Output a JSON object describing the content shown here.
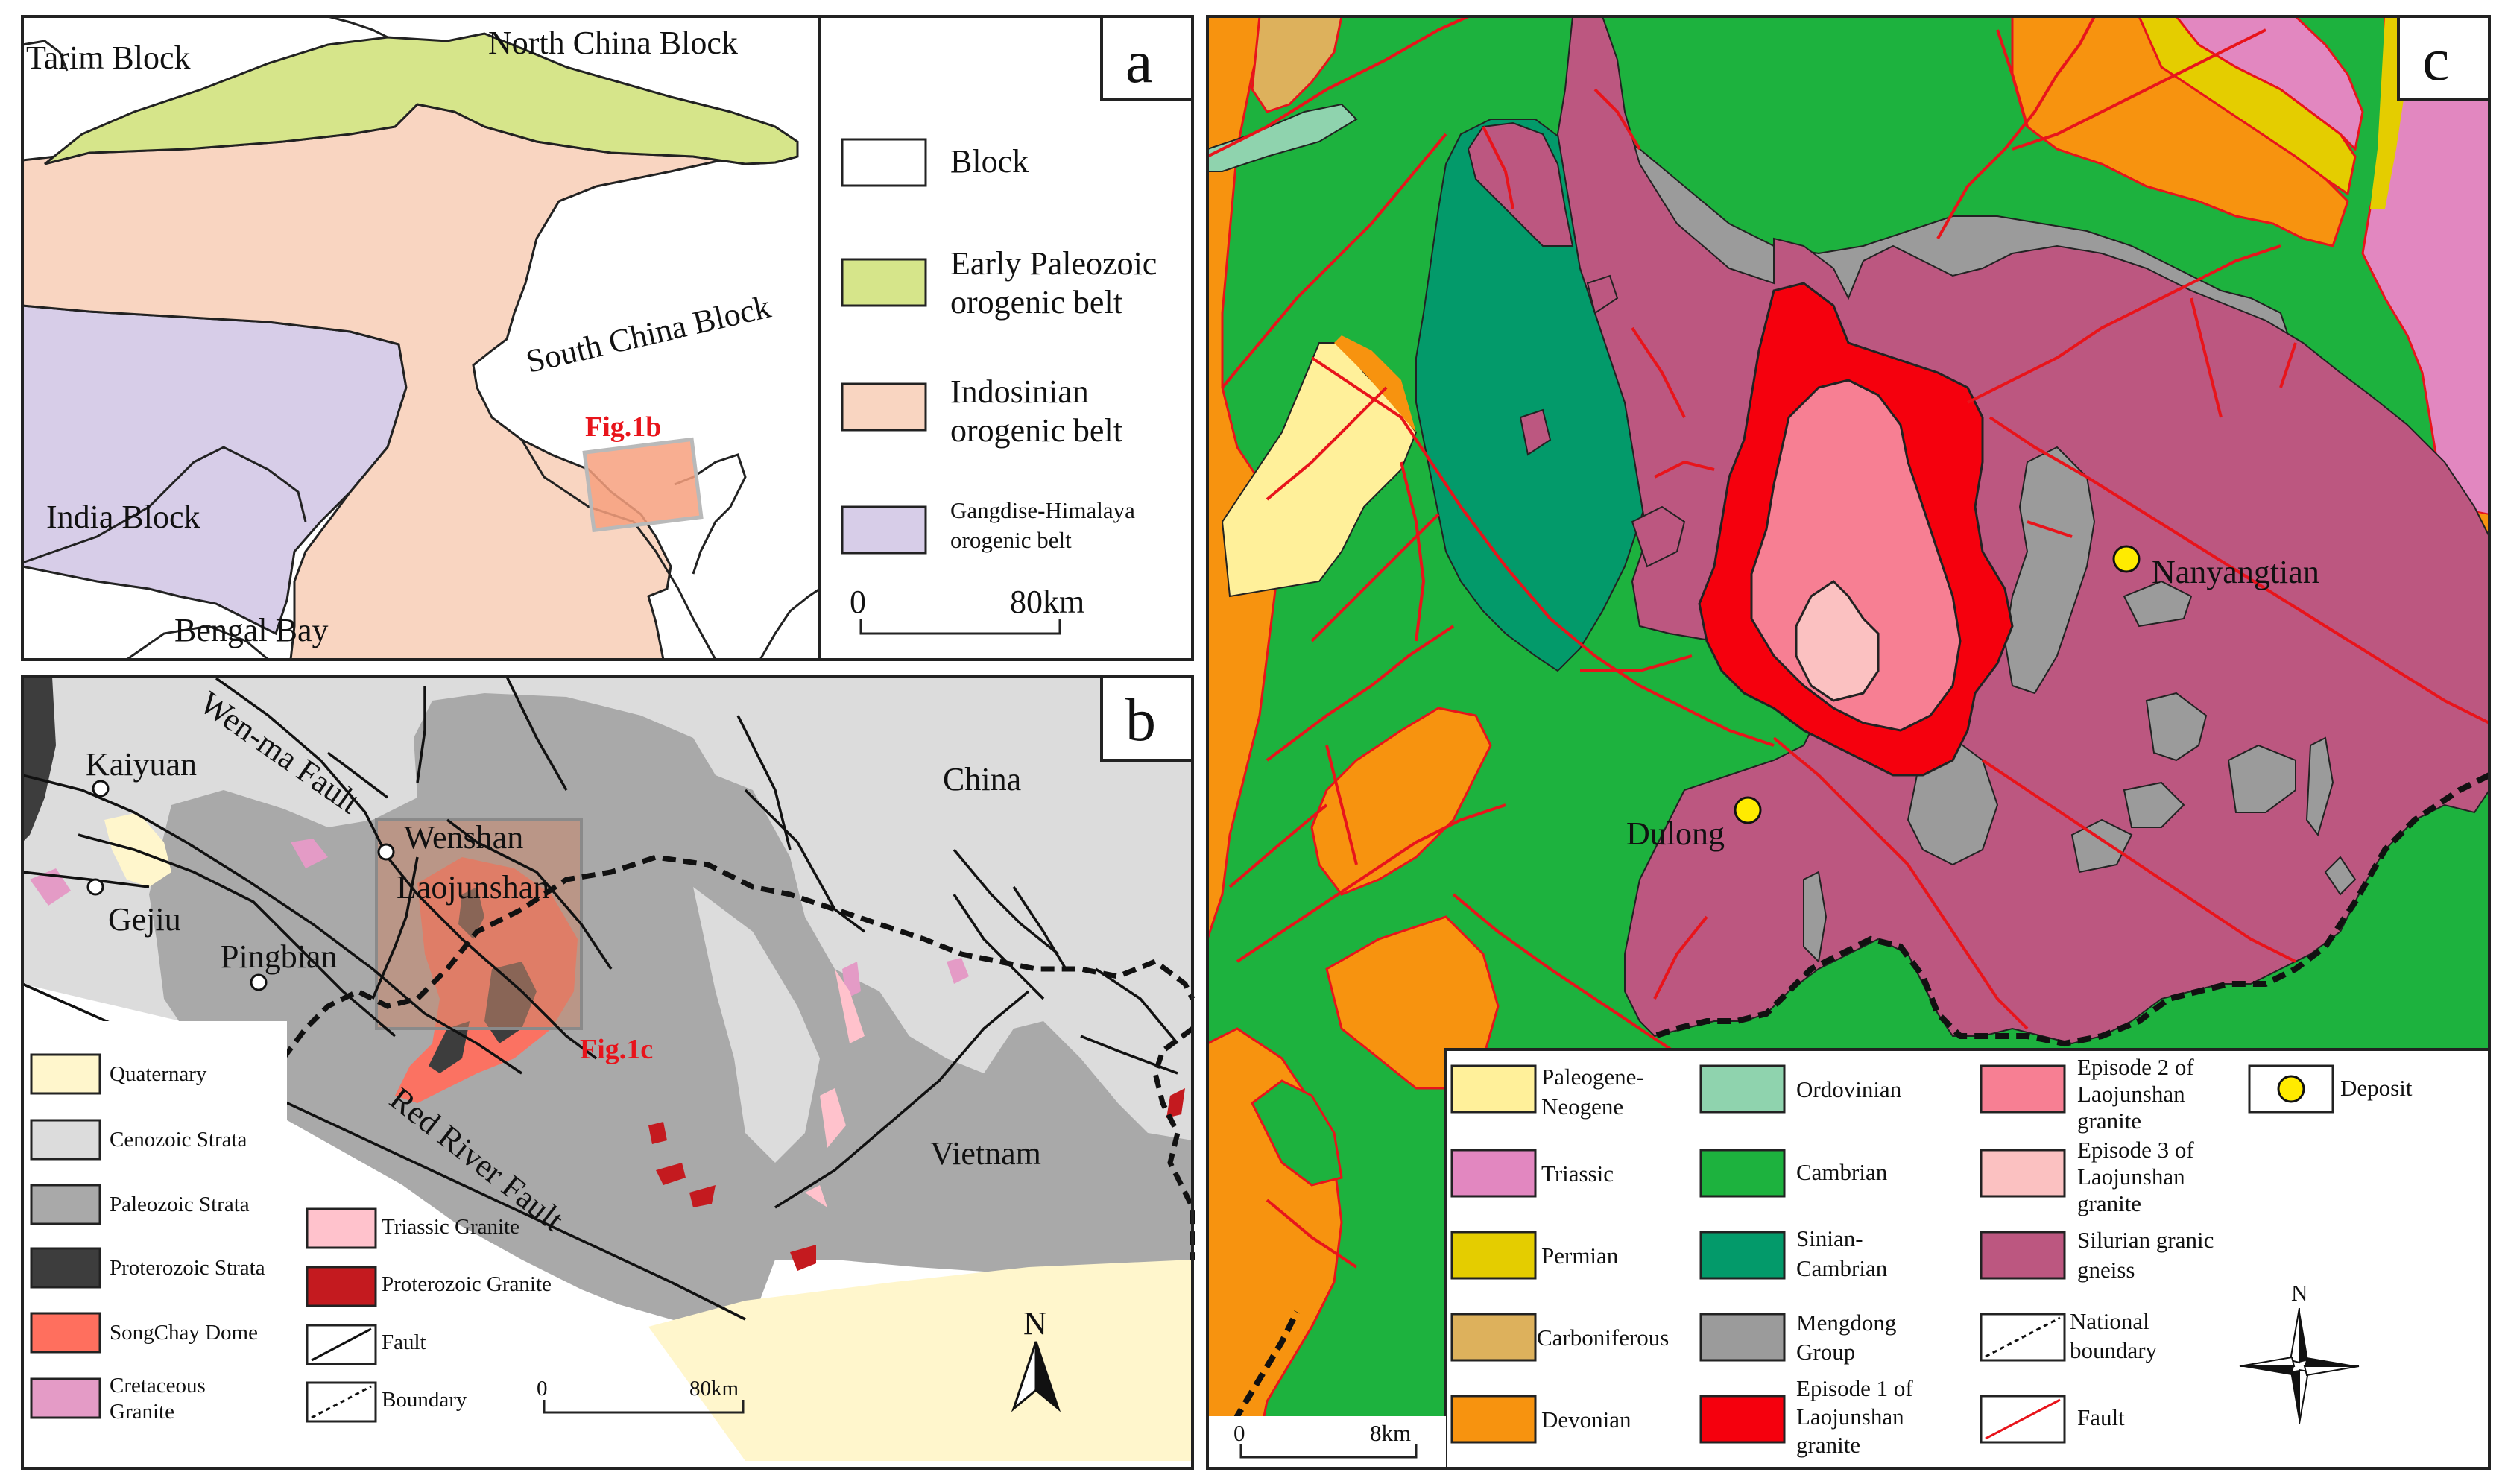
{
  "panel_a": {
    "letter": "a",
    "places": {
      "tarim": "Tarim Block",
      "north_china": "North China Block",
      "south_china": "South China Block",
      "india": "India Block",
      "bengal": "Bengal Bay",
      "fig1b": "Fig.1b"
    },
    "legend": [
      {
        "label": "Block",
        "color": "#ffffff"
      },
      {
        "label": "Early Paleozoic orogenic belt",
        "lines": [
          "Early Paleozoic",
          "orogenic belt"
        ],
        "color": "#d6e58a"
      },
      {
        "label": "Indosinian orogenic belt",
        "lines": [
          "Indosinian",
          "orogenic belt"
        ],
        "color": "#f9d5c1"
      },
      {
        "label": "Gangdise-Himalaya orogenic belt",
        "lines": [
          "Gangdise-Himalaya",
          "orogenic belt"
        ],
        "color": "#d7cde8"
      }
    ],
    "scale": {
      "start": "0",
      "end": "80km"
    }
  },
  "panel_b": {
    "letter": "b",
    "places": {
      "kaiyuan": "Kaiyuan",
      "gejiu": "Gejiu",
      "pingbian": "Pingbian",
      "wenshan": "Wenshan",
      "laojunshan": "Laojunshan",
      "china": "China",
      "vietnam": "Vietnam",
      "wenma_fault": "Wen-ma Fault",
      "red_river_fault": "Red River Fault",
      "fig1c": "Fig.1c"
    },
    "legend": [
      {
        "label": "Quaternary",
        "color": "#fff6cc"
      },
      {
        "label": "Cenozoic Strata",
        "color": "#dcdcdc"
      },
      {
        "label": "Paleozoic Strata",
        "color": "#a9a9a9"
      },
      {
        "label": "Proterozoic Strata",
        "color": "#3d3d3d"
      },
      {
        "label": "SongChay Dome",
        "color": "#ff6f5e"
      },
      {
        "label": "Cretaceous Granite",
        "lines": [
          "Cretaceous",
          "Granite"
        ],
        "color": "#e49bc6"
      },
      {
        "label": "Triassic Granite",
        "color": "#ffc2cc"
      },
      {
        "label": "Proterozoic Granite",
        "color": "#c41a1f"
      },
      {
        "label": "Fault",
        "symbol": "fault"
      },
      {
        "label": "Boundary",
        "symbol": "boundary"
      }
    ],
    "scale": {
      "start": "0",
      "end": "80km"
    },
    "north": "N"
  },
  "panel_c": {
    "letter": "c",
    "places": {
      "nanyangtian": "Nanyangtian",
      "dulong": "Dulong"
    },
    "legend": [
      {
        "label": "Paleogene-Neogene",
        "lines": [
          "Paleogene-",
          "Neogene"
        ],
        "color": "#fff09a"
      },
      {
        "label": "Triassic",
        "color": "#e287c0"
      },
      {
        "label": "Permian",
        "color": "#e4cd00"
      },
      {
        "label": "Carboniferous",
        "color": "#ddb15c"
      },
      {
        "label": "Devonian",
        "color": "#f7930f"
      },
      {
        "label": "Ordovinian",
        "color": "#8fd3ae"
      },
      {
        "label": "Cambrian",
        "color": "#1db23e"
      },
      {
        "label": "Sinian-Cambrian",
        "lines": [
          "Sinian-",
          "Cambrian"
        ],
        "color": "#039a6a"
      },
      {
        "label": "Mengdong Group",
        "lines": [
          "Mengdong",
          "Group"
        ],
        "color": "#9b9b9b"
      },
      {
        "label": "Episode 1 of Laojunshan granite",
        "lines": [
          "Episode 1 of",
          "Laojunshan",
          "granite"
        ],
        "color": "#f5000d"
      },
      {
        "label": "Episode 2 of Laojunshan granite",
        "lines": [
          "Episode 2 of",
          "Laojunshan",
          "granite"
        ],
        "color": "#f77f93"
      },
      {
        "label": "Episode 3 of Laojunshan granite",
        "lines": [
          "Episode 3 of",
          "Laojunshan",
          "granite"
        ],
        "color": "#fbc1c1"
      },
      {
        "label": "Silurian granic gneiss",
        "lines": [
          "Silurian granic",
          "gneiss"
        ],
        "color": "#bc5780"
      },
      {
        "label": "Deposit",
        "symbol": "deposit",
        "color": "#ffeb00"
      },
      {
        "label": "National boundary",
        "lines": [
          "National",
          "boundary"
        ],
        "symbol": "boundary"
      },
      {
        "label": "Fault",
        "symbol": "fault",
        "color": "#e8141b"
      }
    ],
    "scale": {
      "start": "0",
      "end": "8km"
    },
    "north": "N"
  }
}
